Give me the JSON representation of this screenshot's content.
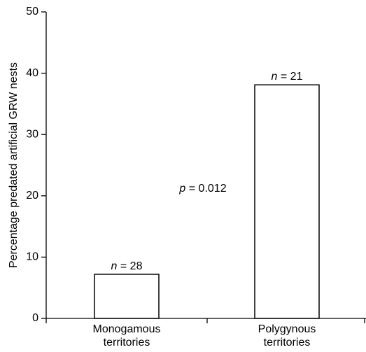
{
  "chart_data": {
    "type": "bar",
    "categories": [
      [
        "Monogamous",
        "territories"
      ],
      [
        "Polygynous",
        "territories"
      ]
    ],
    "values": [
      7.2,
      38.1
    ],
    "bar_labels": [
      {
        "italic": "n",
        "rest": " = 28"
      },
      {
        "italic": "n",
        "rest": " = 21"
      }
    ],
    "annotation": {
      "italic": "p",
      "rest": " = 0.012"
    },
    "xlabel": "",
    "ylabel": "Percentage predated artificial GRW nests",
    "ylim": [
      0,
      50
    ],
    "yticks": [
      0,
      10,
      20,
      30,
      40,
      50
    ],
    "grid": false,
    "bar_fill": "#ffffff",
    "bar_stroke": "#000000"
  }
}
